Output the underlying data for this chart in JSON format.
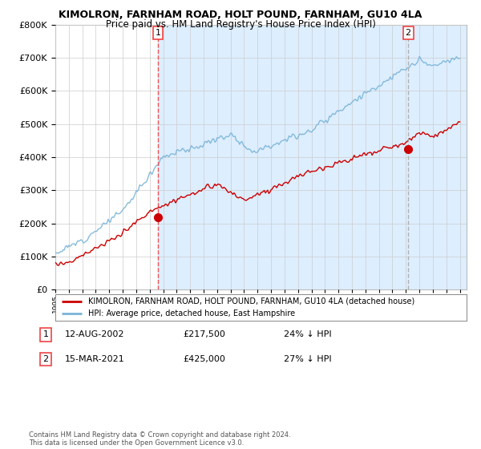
{
  "title": "KIMOLRON, FARNHAM ROAD, HOLT POUND, FARNHAM, GU10 4LA",
  "subtitle": "Price paid vs. HM Land Registry's House Price Index (HPI)",
  "legend_line1": "KIMOLRON, FARNHAM ROAD, HOLT POUND, FARNHAM, GU10 4LA (detached house)",
  "legend_line2": "HPI: Average price, detached house, East Hampshire",
  "transaction1_date": "12-AUG-2002",
  "transaction1_price": "£217,500",
  "transaction1_hpi": "24% ↓ HPI",
  "transaction2_date": "15-MAR-2021",
  "transaction2_price": "£425,000",
  "transaction2_hpi": "27% ↓ HPI",
  "footer": "Contains HM Land Registry data © Crown copyright and database right 2024.\nThis data is licensed under the Open Government Licence v3.0.",
  "hpi_color": "#7ab4d8",
  "price_color": "#cc0000",
  "marker_color": "#cc0000",
  "vline1_color": "#ee4444",
  "vline2_color": "#aaaaaa",
  "grid_color": "#cccccc",
  "background_color": "#ffffff",
  "shade_color": "#ddeeff",
  "ylim": [
    0,
    800000
  ],
  "yticks": [
    0,
    100000,
    200000,
    300000,
    400000,
    500000,
    600000,
    700000,
    800000
  ],
  "t1_year": 2002.6,
  "t2_year": 2021.17,
  "t1_price": 217500,
  "t2_price": 425000,
  "xmin": 1995,
  "xmax": 2025.5
}
